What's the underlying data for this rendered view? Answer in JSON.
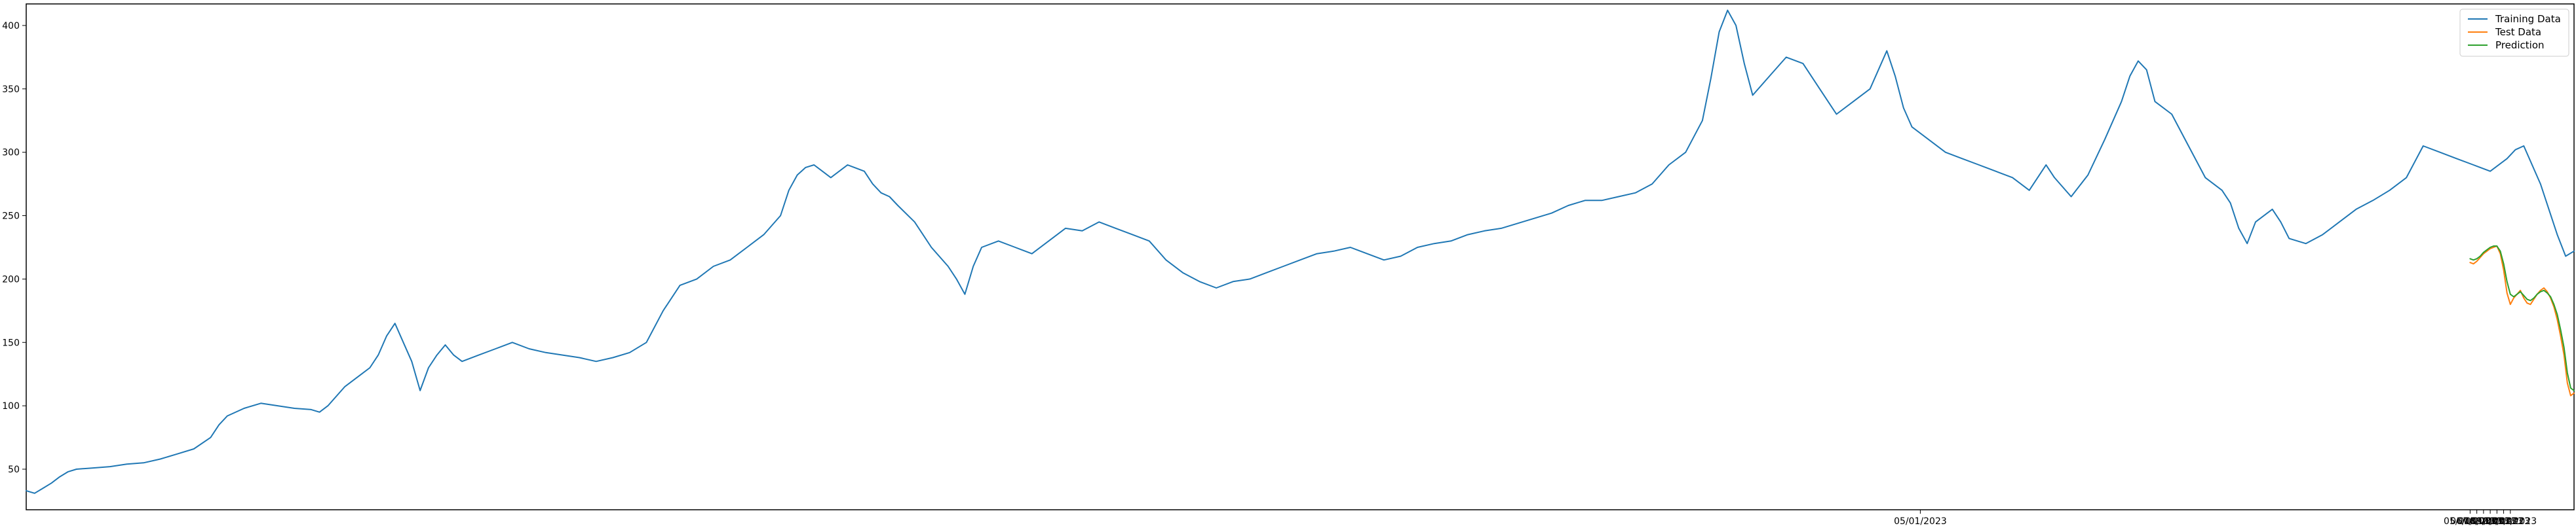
{
  "chart_data": {
    "type": "line",
    "title": "",
    "xlabel": "",
    "ylabel": "",
    "xlim": [
      0,
      1520
    ],
    "ylim": [
      18,
      417
    ],
    "grid": false,
    "legend_position": "top-right",
    "x_tick_labels": [
      {
        "x": 1130,
        "label": "05/01/2023"
      },
      {
        "x": 1458,
        "label": "05/01/2023"
      },
      {
        "x": 1462,
        "label": "06/01/2023"
      },
      {
        "x": 1466,
        "label": "07/01/2023"
      },
      {
        "x": 1470,
        "label": "08/01/2023"
      },
      {
        "x": 1474,
        "label": "09/01/2023"
      },
      {
        "x": 1478,
        "label": "10/01/2023"
      },
      {
        "x": 1482,
        "label": "11/01/2023"
      }
    ],
    "y_ticks": [
      50,
      100,
      150,
      200,
      250,
      300,
      350,
      400
    ],
    "series": [
      {
        "name": "Training Data",
        "color": "#1f77b4",
        "points": [
          [
            0,
            33
          ],
          [
            5,
            31
          ],
          [
            10,
            35
          ],
          [
            15,
            39
          ],
          [
            20,
            44
          ],
          [
            25,
            48
          ],
          [
            30,
            50
          ],
          [
            40,
            51
          ],
          [
            50,
            52
          ],
          [
            60,
            54
          ],
          [
            70,
            55
          ],
          [
            80,
            58
          ],
          [
            90,
            62
          ],
          [
            100,
            66
          ],
          [
            110,
            75
          ],
          [
            115,
            85
          ],
          [
            120,
            92
          ],
          [
            130,
            98
          ],
          [
            140,
            102
          ],
          [
            150,
            100
          ],
          [
            160,
            98
          ],
          [
            170,
            97
          ],
          [
            175,
            95
          ],
          [
            180,
            100
          ],
          [
            190,
            115
          ],
          [
            200,
            125
          ],
          [
            205,
            130
          ],
          [
            210,
            140
          ],
          [
            215,
            155
          ],
          [
            220,
            165
          ],
          [
            225,
            150
          ],
          [
            230,
            135
          ],
          [
            235,
            112
          ],
          [
            240,
            130
          ],
          [
            245,
            140
          ],
          [
            250,
            148
          ],
          [
            255,
            140
          ],
          [
            260,
            135
          ],
          [
            270,
            140
          ],
          [
            280,
            145
          ],
          [
            290,
            150
          ],
          [
            300,
            145
          ],
          [
            310,
            142
          ],
          [
            320,
            140
          ],
          [
            330,
            138
          ],
          [
            340,
            135
          ],
          [
            350,
            138
          ],
          [
            360,
            142
          ],
          [
            370,
            150
          ],
          [
            380,
            175
          ],
          [
            390,
            195
          ],
          [
            400,
            200
          ],
          [
            410,
            210
          ],
          [
            420,
            215
          ],
          [
            430,
            225
          ],
          [
            440,
            235
          ],
          [
            450,
            250
          ],
          [
            455,
            270
          ],
          [
            460,
            282
          ],
          [
            465,
            288
          ],
          [
            470,
            290
          ],
          [
            475,
            285
          ],
          [
            480,
            280
          ],
          [
            490,
            290
          ],
          [
            500,
            285
          ],
          [
            505,
            275
          ],
          [
            510,
            268
          ],
          [
            515,
            265
          ],
          [
            520,
            258
          ],
          [
            530,
            245
          ],
          [
            535,
            235
          ],
          [
            540,
            225
          ],
          [
            550,
            210
          ],
          [
            555,
            200
          ],
          [
            560,
            188
          ],
          [
            565,
            210
          ],
          [
            570,
            225
          ],
          [
            580,
            230
          ],
          [
            590,
            225
          ],
          [
            600,
            220
          ],
          [
            610,
            230
          ],
          [
            620,
            240
          ],
          [
            630,
            238
          ],
          [
            640,
            245
          ],
          [
            650,
            240
          ],
          [
            660,
            235
          ],
          [
            670,
            230
          ],
          [
            680,
            215
          ],
          [
            690,
            205
          ],
          [
            700,
            198
          ],
          [
            710,
            193
          ],
          [
            720,
            198
          ],
          [
            730,
            200
          ],
          [
            740,
            205
          ],
          [
            750,
            210
          ],
          [
            760,
            215
          ],
          [
            770,
            220
          ],
          [
            780,
            222
          ],
          [
            790,
            225
          ],
          [
            800,
            220
          ],
          [
            810,
            215
          ],
          [
            820,
            218
          ],
          [
            830,
            225
          ],
          [
            840,
            228
          ],
          [
            850,
            230
          ],
          [
            860,
            235
          ],
          [
            870,
            238
          ],
          [
            880,
            240
          ],
          [
            890,
            244
          ],
          [
            900,
            248
          ],
          [
            910,
            252
          ],
          [
            920,
            258
          ],
          [
            930,
            262
          ],
          [
            940,
            262
          ],
          [
            950,
            265
          ],
          [
            960,
            268
          ],
          [
            970,
            275
          ],
          [
            980,
            290
          ],
          [
            990,
            300
          ],
          [
            1000,
            325
          ],
          [
            1005,
            358
          ],
          [
            1010,
            395
          ],
          [
            1015,
            412
          ],
          [
            1020,
            400
          ],
          [
            1025,
            370
          ],
          [
            1030,
            345
          ],
          [
            1040,
            360
          ],
          [
            1050,
            375
          ],
          [
            1060,
            370
          ],
          [
            1070,
            350
          ],
          [
            1080,
            330
          ],
          [
            1090,
            340
          ],
          [
            1100,
            350
          ],
          [
            1110,
            380
          ],
          [
            1115,
            360
          ],
          [
            1120,
            335
          ],
          [
            1125,
            320
          ],
          [
            1135,
            310
          ],
          [
            1145,
            300
          ],
          [
            1155,
            295
          ],
          [
            1165,
            290
          ],
          [
            1175,
            285
          ],
          [
            1185,
            280
          ],
          [
            1195,
            270
          ],
          [
            1205,
            290
          ],
          [
            1210,
            280
          ],
          [
            1220,
            265
          ],
          [
            1230,
            282
          ],
          [
            1240,
            310
          ],
          [
            1250,
            340
          ],
          [
            1255,
            360
          ],
          [
            1260,
            372
          ],
          [
            1265,
            365
          ],
          [
            1270,
            340
          ],
          [
            1280,
            330
          ],
          [
            1290,
            305
          ],
          [
            1300,
            280
          ],
          [
            1310,
            270
          ],
          [
            1315,
            260
          ],
          [
            1320,
            240
          ],
          [
            1325,
            228
          ],
          [
            1330,
            245
          ],
          [
            1340,
            255
          ],
          [
            1345,
            245
          ],
          [
            1350,
            232
          ],
          [
            1360,
            228
          ],
          [
            1370,
            235
          ],
          [
            1380,
            245
          ],
          [
            1390,
            255
          ],
          [
            1400,
            262
          ],
          [
            1410,
            270
          ],
          [
            1420,
            280
          ],
          [
            1430,
            305
          ],
          [
            1440,
            300
          ],
          [
            1450,
            295
          ],
          [
            1460,
            290
          ],
          [
            1470,
            285
          ],
          [
            1480,
            295
          ],
          [
            1485,
            302
          ],
          [
            1490,
            305
          ],
          [
            1500,
            275
          ],
          [
            1510,
            235
          ],
          [
            1515,
            218
          ],
          [
            1520,
            222
          ]
        ]
      },
      {
        "name": "Test Data",
        "color": "#ff7f0e",
        "points": [
          [
            1458,
            213
          ],
          [
            1460,
            212
          ],
          [
            1462,
            214
          ],
          [
            1464,
            217
          ],
          [
            1466,
            220
          ],
          [
            1468,
            222
          ],
          [
            1470,
            224
          ],
          [
            1472,
            225
          ],
          [
            1474,
            226
          ],
          [
            1476,
            220
          ],
          [
            1478,
            207
          ],
          [
            1480,
            189
          ],
          [
            1482,
            180
          ],
          [
            1484,
            185
          ],
          [
            1486,
            188
          ],
          [
            1488,
            191
          ],
          [
            1490,
            185
          ],
          [
            1492,
            181
          ],
          [
            1494,
            180
          ],
          [
            1496,
            184
          ],
          [
            1498,
            188
          ],
          [
            1500,
            191
          ],
          [
            1502,
            193
          ],
          [
            1504,
            190
          ],
          [
            1506,
            185
          ],
          [
            1508,
            178
          ],
          [
            1510,
            168
          ],
          [
            1512,
            155
          ],
          [
            1514,
            140
          ],
          [
            1516,
            118
          ],
          [
            1518,
            108
          ],
          [
            1520,
            110
          ]
        ]
      },
      {
        "name": "Prediction",
        "color": "#2ca02c",
        "points": [
          [
            1458,
            216
          ],
          [
            1460,
            215
          ],
          [
            1462,
            216
          ],
          [
            1464,
            218
          ],
          [
            1466,
            221
          ],
          [
            1468,
            223
          ],
          [
            1470,
            225
          ],
          [
            1472,
            226
          ],
          [
            1474,
            226
          ],
          [
            1476,
            222
          ],
          [
            1478,
            212
          ],
          [
            1480,
            198
          ],
          [
            1482,
            188
          ],
          [
            1484,
            186
          ],
          [
            1486,
            188
          ],
          [
            1488,
            190
          ],
          [
            1490,
            187
          ],
          [
            1492,
            184
          ],
          [
            1494,
            183
          ],
          [
            1496,
            185
          ],
          [
            1498,
            188
          ],
          [
            1500,
            190
          ],
          [
            1502,
            191
          ],
          [
            1504,
            189
          ],
          [
            1506,
            186
          ],
          [
            1508,
            180
          ],
          [
            1510,
            172
          ],
          [
            1512,
            160
          ],
          [
            1514,
            146
          ],
          [
            1516,
            126
          ],
          [
            1518,
            114
          ],
          [
            1520,
            112
          ]
        ]
      }
    ]
  }
}
